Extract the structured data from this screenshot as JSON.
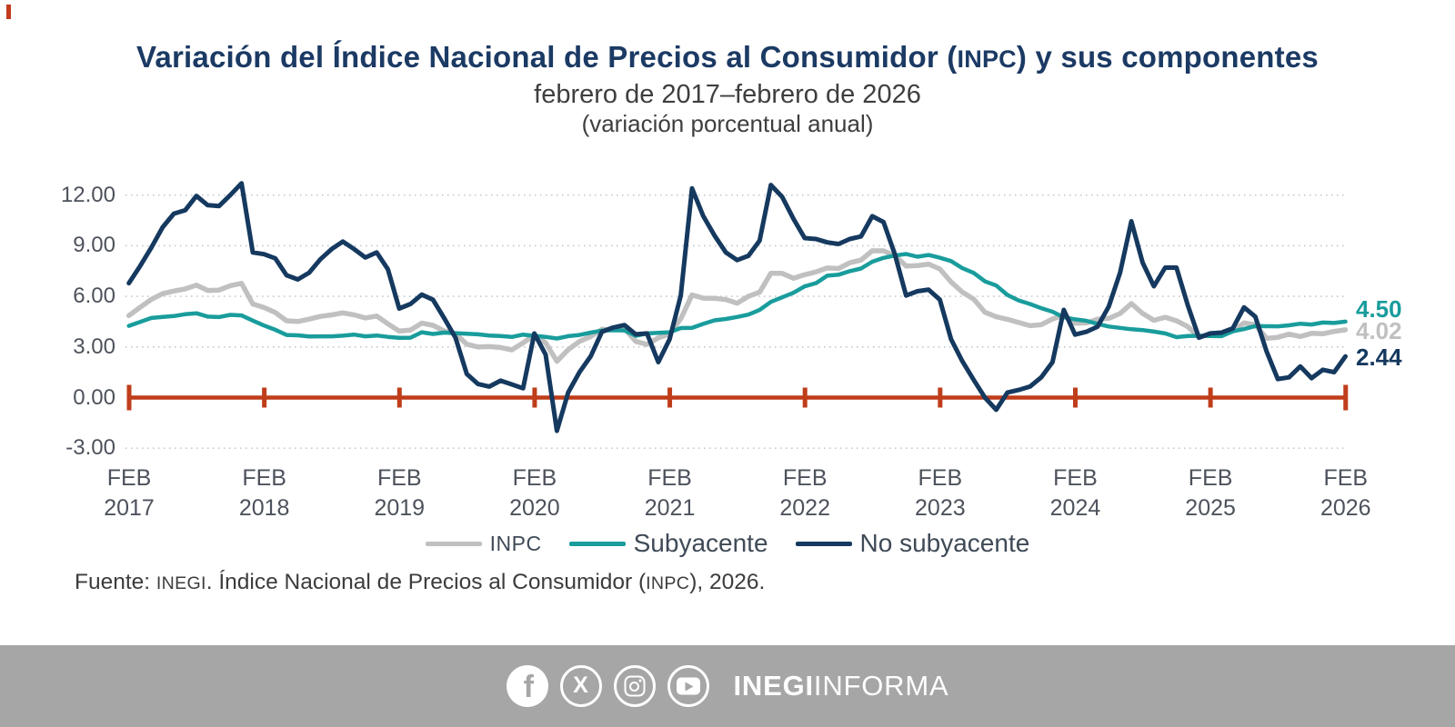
{
  "header": {
    "title_pre": "Variación del Índice Nacional de Precios al Consumidor (",
    "title_acronym": "INPC",
    "title_post": ") y sus componentes",
    "subtitle": "febrero de 2017–febrero de 2026",
    "note": "(variación porcentual anual)"
  },
  "chart_data": {
    "type": "line",
    "title": "Variación del Índice Nacional de Precios al Consumidor (INPC) y sus componentes",
    "subtitle": "febrero de 2017–febrero de 2026",
    "ylabel": "variación porcentual anual",
    "frequency": "monthly",
    "x_range": [
      "FEB 2017",
      "FEB 2026"
    ],
    "ylim": [
      -3,
      13
    ],
    "grid": "dotted-horizontal",
    "zero_axis_color": "#BF3D1A",
    "legend_position": "bottom",
    "y_ticks": [
      {
        "label": "12.00",
        "value": 12
      },
      {
        "label": "9.00",
        "value": 9
      },
      {
        "label": "6.00",
        "value": 6
      },
      {
        "label": "3.00",
        "value": 3
      },
      {
        "label": "0.00",
        "value": 0
      },
      {
        "label": "-3.00",
        "value": -3
      }
    ],
    "x_ticks": [
      {
        "month": "FEB",
        "year": "2017"
      },
      {
        "month": "FEB",
        "year": "2018"
      },
      {
        "month": "FEB",
        "year": "2019"
      },
      {
        "month": "FEB",
        "year": "2020"
      },
      {
        "month": "FEB",
        "year": "2021"
      },
      {
        "month": "FEB",
        "year": "2022"
      },
      {
        "month": "FEB",
        "year": "2023"
      },
      {
        "month": "FEB",
        "year": "2024"
      },
      {
        "month": "FEB",
        "year": "2025"
      },
      {
        "month": "FEB",
        "year": "2026"
      }
    ],
    "series": [
      {
        "name": "INPC",
        "color": "#C0C0C0",
        "end_label": "4.02",
        "values": [
          4.86,
          5.35,
          5.82,
          6.16,
          6.31,
          6.44,
          6.66,
          6.35,
          6.37,
          6.63,
          6.77,
          5.55,
          5.34,
          5.04,
          4.55,
          4.51,
          4.65,
          4.81,
          4.9,
          5.02,
          4.9,
          4.72,
          4.83,
          4.37,
          3.94,
          4.0,
          4.41,
          4.28,
          3.95,
          3.78,
          3.16,
          3.0,
          3.02,
          2.97,
          2.83,
          3.24,
          3.7,
          3.25,
          2.15,
          2.84,
          3.33,
          3.62,
          4.05,
          4.01,
          4.09,
          3.33,
          3.15,
          3.54,
          3.76,
          4.67,
          6.08,
          5.89,
          5.88,
          5.81,
          5.59,
          6.0,
          6.24,
          7.37,
          7.36,
          7.07,
          7.28,
          7.45,
          7.68,
          7.65,
          7.99,
          8.15,
          8.7,
          8.7,
          8.41,
          7.8,
          7.82,
          7.91,
          7.62,
          6.85,
          6.25,
          5.84,
          5.06,
          4.79,
          4.64,
          4.45,
          4.26,
          4.32,
          4.66,
          4.88,
          4.4,
          4.42,
          4.65,
          4.69,
          4.98,
          5.57,
          4.99,
          4.58,
          4.76,
          4.55,
          4.21,
          3.59,
          3.77,
          3.8,
          3.93,
          4.42,
          4.32,
          3.51,
          3.57,
          3.76,
          3.62,
          3.81,
          3.78,
          3.92,
          4.02
        ]
      },
      {
        "name": "Subyacente",
        "color": "#199C9C",
        "end_label": "4.50",
        "values": [
          4.25,
          4.48,
          4.72,
          4.78,
          4.83,
          4.94,
          5.0,
          4.8,
          4.77,
          4.9,
          4.87,
          4.56,
          4.27,
          4.02,
          3.71,
          3.69,
          3.62,
          3.63,
          3.63,
          3.67,
          3.73,
          3.63,
          3.68,
          3.6,
          3.54,
          3.55,
          3.87,
          3.77,
          3.85,
          3.82,
          3.78,
          3.75,
          3.68,
          3.65,
          3.59,
          3.73,
          3.66,
          3.6,
          3.5,
          3.64,
          3.71,
          3.85,
          3.97,
          3.99,
          3.98,
          3.66,
          3.8,
          3.84,
          3.87,
          4.12,
          4.13,
          4.37,
          4.58,
          4.66,
          4.78,
          4.92,
          5.19,
          5.67,
          5.94,
          6.21,
          6.59,
          6.78,
          7.22,
          7.28,
          7.49,
          7.65,
          8.05,
          8.28,
          8.42,
          8.51,
          8.35,
          8.45,
          8.29,
          8.09,
          7.67,
          7.39,
          6.89,
          6.64,
          6.08,
          5.76,
          5.55,
          5.3,
          5.09,
          4.76,
          4.64,
          4.55,
          4.37,
          4.21,
          4.13,
          4.05,
          4.0,
          3.91,
          3.8,
          3.58,
          3.65,
          3.66,
          3.65,
          3.64,
          3.93,
          4.06,
          4.24,
          4.23,
          4.22,
          4.28,
          4.38,
          4.33,
          4.45,
          4.42,
          4.5
        ]
      },
      {
        "name": "No subyacente",
        "color": "#15395F",
        "end_label": "2.44",
        "values": [
          6.78,
          7.8,
          8.9,
          10.1,
          10.9,
          11.1,
          11.95,
          11.4,
          11.35,
          12.0,
          12.7,
          8.6,
          8.5,
          8.25,
          7.25,
          7.0,
          7.4,
          8.2,
          8.8,
          9.25,
          8.8,
          8.3,
          8.6,
          7.6,
          5.28,
          5.55,
          6.1,
          5.8,
          4.7,
          3.55,
          1.4,
          0.8,
          0.65,
          1.0,
          0.78,
          0.55,
          3.8,
          2.55,
          -1.97,
          0.3,
          1.5,
          2.45,
          3.9,
          4.15,
          4.3,
          3.75,
          3.8,
          2.1,
          3.45,
          6.05,
          12.4,
          10.75,
          9.6,
          8.6,
          8.15,
          8.4,
          9.3,
          12.6,
          11.9,
          10.6,
          9.45,
          9.4,
          9.2,
          9.1,
          9.4,
          9.55,
          10.75,
          10.4,
          8.5,
          6.05,
          6.3,
          6.4,
          5.8,
          3.45,
          2.15,
          1.05,
          0.0,
          -0.72,
          0.3,
          0.45,
          0.65,
          1.2,
          2.1,
          5.2,
          3.73,
          3.9,
          4.2,
          5.4,
          7.4,
          10.45,
          8.0,
          6.6,
          7.7,
          7.7,
          5.5,
          3.55,
          3.8,
          3.85,
          4.1,
          5.35,
          4.8,
          2.75,
          1.1,
          1.2,
          1.85,
          1.15,
          1.65,
          1.5,
          2.44
        ]
      }
    ]
  },
  "legend": {
    "items": [
      {
        "label": "INPC",
        "color": "#C0C0C0"
      },
      {
        "label": "Subyacente",
        "color": "#199C9C"
      },
      {
        "label": "No subyacente",
        "color": "#15395F"
      }
    ]
  },
  "source": {
    "s1": "Fuente: ",
    "s2": "INEGI",
    "s3": ". Índice Nacional de Precios al Consumidor (",
    "s4": "INPC",
    "s5": "), 2026."
  },
  "footer": {
    "bg": "#A6A6A6",
    "icons": [
      "facebook-icon",
      "x-icon",
      "instagram-icon",
      "youtube-icon"
    ],
    "brand_bold": "INEGI",
    "brand_regular": "INFORMA"
  },
  "accents": {
    "corner_mark": "#C23B1C",
    "title_color": "#1B3A64"
  }
}
